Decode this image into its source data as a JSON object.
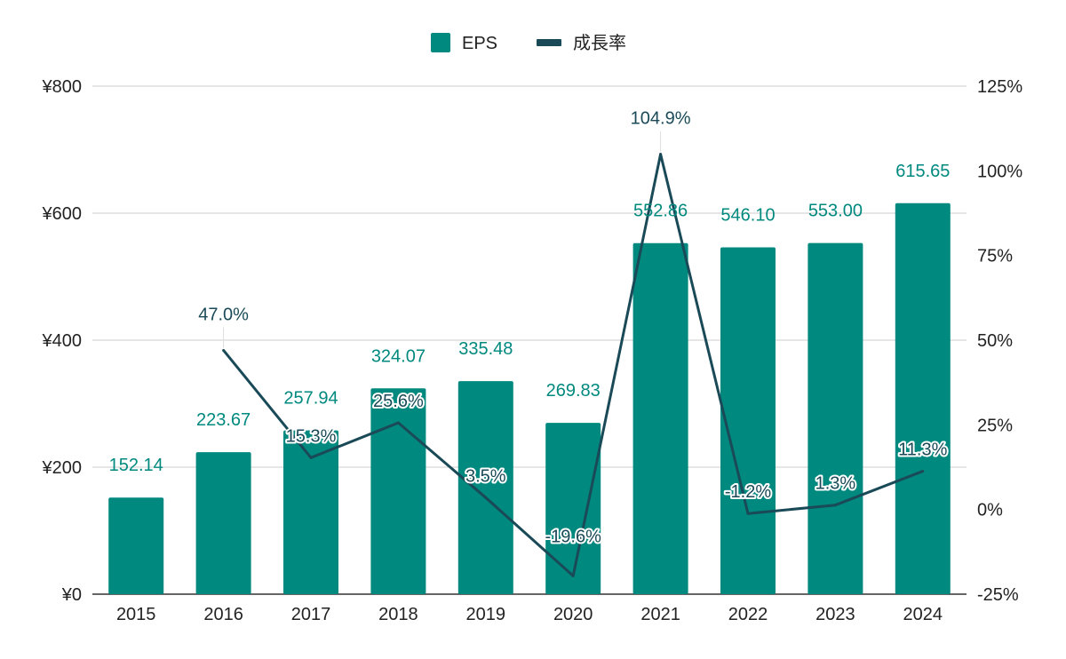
{
  "chart_data": {
    "type": "bar+line",
    "categories": [
      "2015",
      "2016",
      "2017",
      "2018",
      "2019",
      "2020",
      "2021",
      "2022",
      "2023",
      "2024"
    ],
    "series": [
      {
        "name": "EPS",
        "type": "bar",
        "axis": "left",
        "color": "#00897f",
        "values": [
          152.14,
          223.67,
          257.94,
          324.07,
          335.48,
          269.83,
          552.86,
          546.1,
          553.0,
          615.65
        ],
        "labels": [
          "152.14",
          "223.67",
          "257.94",
          "324.07",
          "335.48",
          "269.83",
          "552.86",
          "546.10",
          "553.00",
          "615.65"
        ]
      },
      {
        "name": "成長率",
        "type": "line",
        "axis": "right",
        "color": "#1a4a57",
        "values": [
          null,
          47.0,
          15.3,
          25.6,
          3.5,
          -19.6,
          104.9,
          -1.2,
          1.3,
          11.3
        ],
        "labels": [
          null,
          "47.0%",
          "15.3%",
          "25.6%",
          "3.5%",
          "-19.6%",
          "104.9%",
          "-1.2%",
          "1.3%",
          "11.3%"
        ]
      }
    ],
    "y_left": {
      "min": 0,
      "max": 800,
      "ticks": [
        0,
        200,
        400,
        600,
        800
      ],
      "tick_labels": [
        "¥0",
        "¥200",
        "¥400",
        "¥600",
        "¥800"
      ]
    },
    "y_right": {
      "min": -25,
      "max": 125,
      "ticks": [
        -25,
        0,
        25,
        50,
        75,
        100,
        125
      ],
      "tick_labels": [
        "-25%",
        "0%",
        "25%",
        "50%",
        "75%",
        "100%",
        "125%"
      ]
    },
    "grid": true,
    "legend_position": "top-center"
  }
}
